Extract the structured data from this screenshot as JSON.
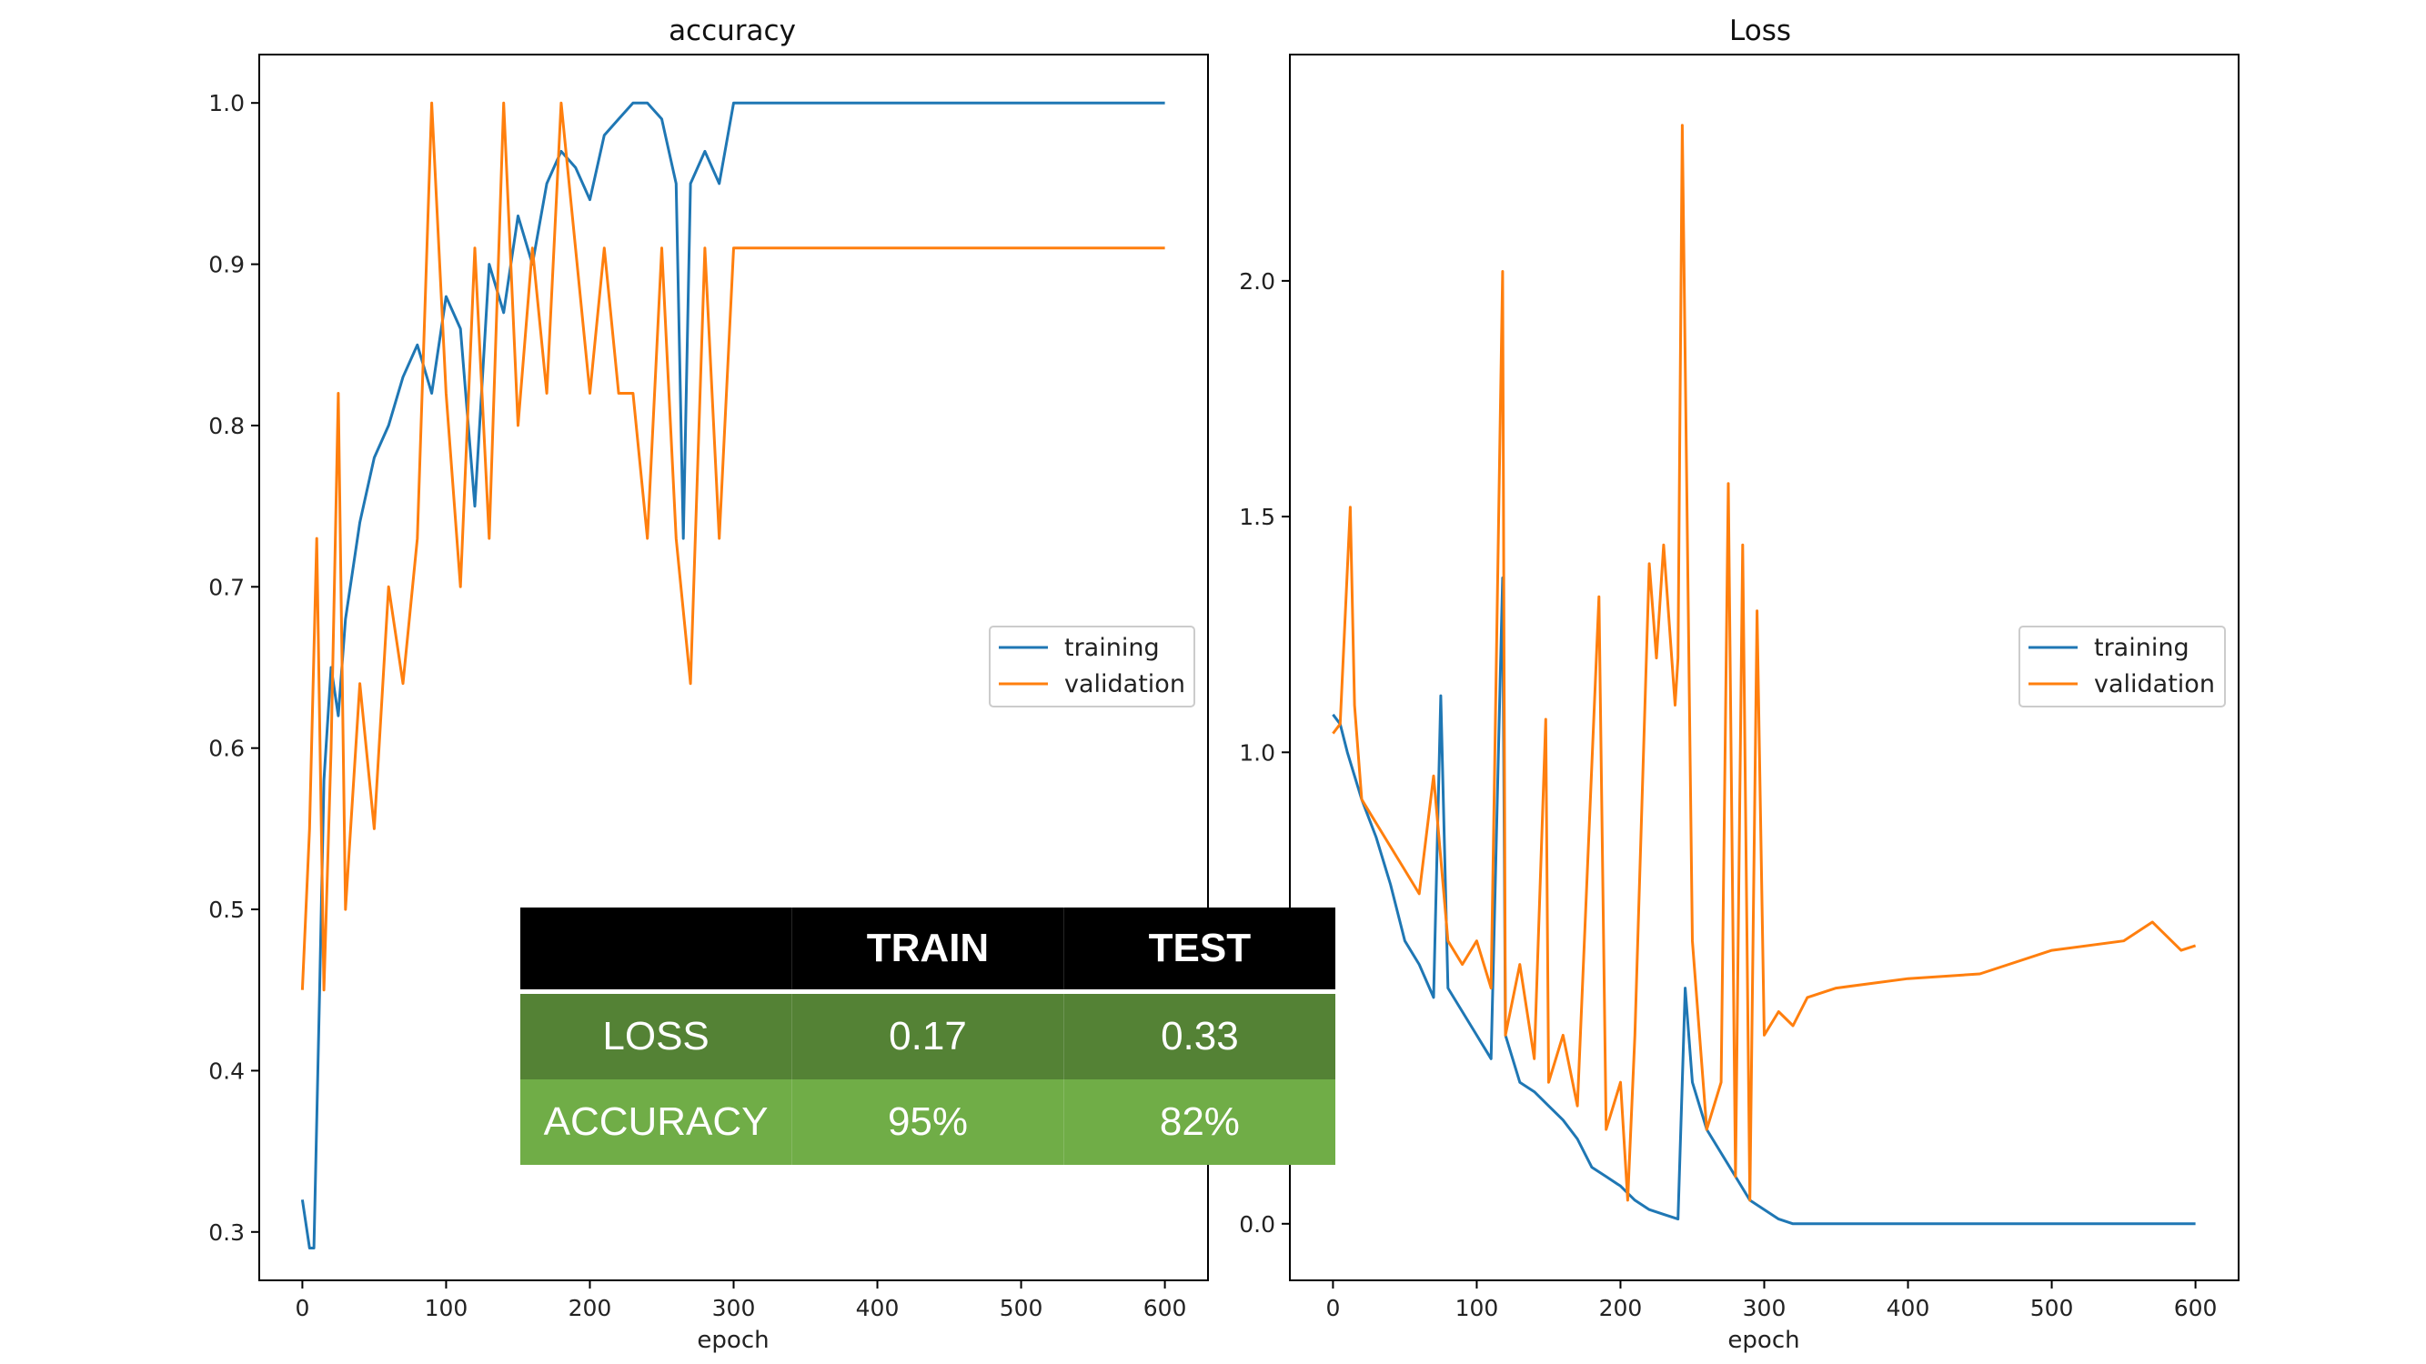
{
  "chart_data": [
    {
      "type": "line",
      "title": "accuracy",
      "xlabel": "epoch",
      "ylabel": "",
      "xlim": [
        -30,
        630
      ],
      "ylim": [
        0.27,
        1.03
      ],
      "xticks": [
        0,
        100,
        200,
        300,
        400,
        500,
        600
      ],
      "yticks": [
        0.3,
        0.4,
        0.5,
        0.6,
        0.7,
        0.8,
        0.9,
        1.0
      ],
      "grid": false,
      "legend": "center-right",
      "series": [
        {
          "name": "training",
          "color": "#1f77b4",
          "x": [
            0,
            5,
            8,
            12,
            15,
            20,
            25,
            30,
            40,
            50,
            60,
            70,
            80,
            90,
            100,
            110,
            120,
            130,
            140,
            150,
            160,
            170,
            180,
            190,
            200,
            210,
            220,
            230,
            240,
            250,
            260,
            265,
            270,
            280,
            290,
            300,
            310,
            400,
            500,
            600
          ],
          "y": [
            0.32,
            0.29,
            0.29,
            0.45,
            0.58,
            0.65,
            0.62,
            0.68,
            0.74,
            0.78,
            0.8,
            0.83,
            0.85,
            0.82,
            0.88,
            0.86,
            0.75,
            0.9,
            0.87,
            0.93,
            0.9,
            0.95,
            0.97,
            0.96,
            0.94,
            0.98,
            0.99,
            1.0,
            1.0,
            0.99,
            0.95,
            0.73,
            0.95,
            0.97,
            0.95,
            1.0,
            1.0,
            1.0,
            1.0,
            1.0
          ]
        },
        {
          "name": "validation",
          "color": "#ff7f0e",
          "x": [
            0,
            5,
            10,
            15,
            20,
            25,
            30,
            40,
            50,
            60,
            70,
            80,
            90,
            100,
            110,
            120,
            130,
            140,
            150,
            160,
            170,
            180,
            190,
            200,
            210,
            220,
            230,
            240,
            250,
            260,
            270,
            280,
            290,
            300,
            310,
            400,
            500,
            600
          ],
          "y": [
            0.45,
            0.55,
            0.73,
            0.45,
            0.6,
            0.82,
            0.5,
            0.64,
            0.55,
            0.7,
            0.64,
            0.73,
            1.0,
            0.82,
            0.7,
            0.91,
            0.73,
            1.0,
            0.8,
            0.91,
            0.82,
            1.0,
            0.91,
            0.82,
            0.91,
            0.82,
            0.82,
            0.73,
            0.91,
            0.73,
            0.64,
            0.91,
            0.73,
            0.91,
            0.91,
            0.91,
            0.91,
            0.91
          ]
        }
      ]
    },
    {
      "type": "line",
      "title": "Loss",
      "xlabel": "epoch",
      "ylabel": "",
      "xlim": [
        -30,
        630
      ],
      "ylim": [
        -0.12,
        2.48
      ],
      "xticks": [
        0,
        100,
        200,
        300,
        400,
        500,
        600
      ],
      "yticks": [
        0.0,
        0.5,
        1.0,
        1.5,
        2.0
      ],
      "grid": false,
      "legend": "center-right",
      "series": [
        {
          "name": "training",
          "color": "#1f77b4",
          "x": [
            0,
            5,
            10,
            20,
            30,
            40,
            50,
            60,
            70,
            75,
            80,
            90,
            100,
            110,
            118,
            120,
            130,
            140,
            150,
            160,
            170,
            180,
            190,
            200,
            210,
            220,
            230,
            240,
            245,
            250,
            260,
            270,
            280,
            290,
            300,
            310,
            320,
            400,
            500,
            600
          ],
          "y": [
            1.08,
            1.06,
            1.0,
            0.9,
            0.82,
            0.72,
            0.6,
            0.55,
            0.48,
            1.12,
            0.5,
            0.45,
            0.4,
            0.35,
            1.37,
            0.4,
            0.3,
            0.28,
            0.25,
            0.22,
            0.18,
            0.12,
            0.1,
            0.08,
            0.05,
            0.03,
            0.02,
            0.01,
            0.5,
            0.3,
            0.2,
            0.15,
            0.1,
            0.05,
            0.03,
            0.01,
            0.0,
            0.0,
            0.0,
            0.0
          ]
        },
        {
          "name": "validation",
          "color": "#ff7f0e",
          "x": [
            0,
            5,
            12,
            15,
            20,
            30,
            40,
            50,
            60,
            70,
            80,
            90,
            100,
            110,
            118,
            120,
            130,
            140,
            148,
            150,
            160,
            170,
            185,
            190,
            200,
            205,
            210,
            220,
            225,
            230,
            238,
            240,
            243,
            250,
            260,
            270,
            275,
            280,
            285,
            290,
            295,
            300,
            310,
            320,
            330,
            350,
            400,
            450,
            500,
            550,
            570,
            590,
            600
          ],
          "y": [
            1.04,
            1.06,
            1.52,
            1.1,
            0.9,
            0.85,
            0.8,
            0.75,
            0.7,
            0.95,
            0.6,
            0.55,
            0.6,
            0.5,
            2.02,
            0.4,
            0.55,
            0.35,
            1.07,
            0.3,
            0.4,
            0.25,
            1.33,
            0.2,
            0.3,
            0.05,
            0.4,
            1.4,
            1.2,
            1.44,
            1.1,
            1.2,
            2.33,
            0.6,
            0.2,
            0.3,
            1.57,
            0.1,
            1.44,
            0.05,
            1.3,
            0.4,
            0.45,
            0.42,
            0.48,
            0.5,
            0.52,
            0.53,
            0.58,
            0.6,
            0.64,
            0.58,
            0.59
          ]
        }
      ]
    }
  ],
  "table": {
    "headers": [
      "",
      "TRAIN",
      "TEST"
    ],
    "rows": [
      {
        "label": "LOSS",
        "train": "0.17",
        "test": "0.33"
      },
      {
        "label": "ACCURACY",
        "train": "95%",
        "test": "82%"
      }
    ]
  }
}
